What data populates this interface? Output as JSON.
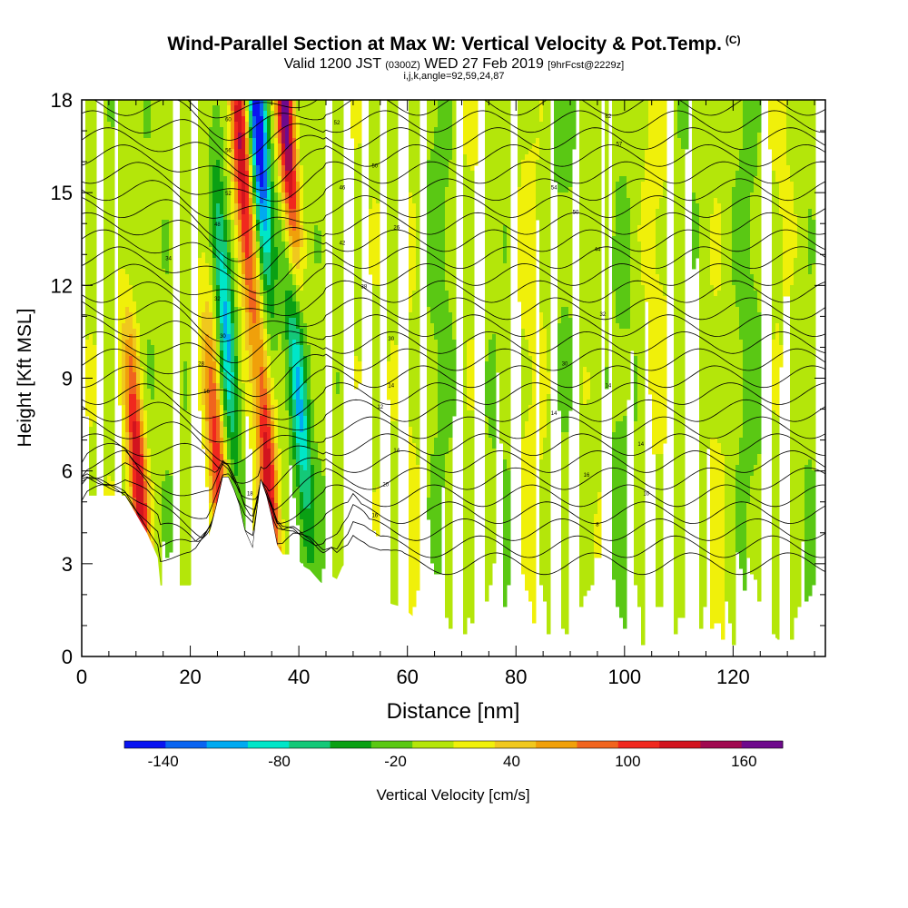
{
  "title": {
    "main": "Wind-Parallel Section at Max W: Vertical Velocity & Pot.Temp.",
    "main_mark": "(C)",
    "valid_prefix": "Valid 1200 JST",
    "valid_zulu": "(0300Z)",
    "valid_date": "WED 27 Feb 2019",
    "forecast": "[9hrFcst@2229z]",
    "indices": "i,j,k,angle=92,59,24,87"
  },
  "chart_data": {
    "type": "heatmap",
    "xlabel": "Distance [nm]",
    "ylabel": "Height [Kft MSL]",
    "xlim": [
      0,
      137
    ],
    "ylim": [
      0,
      18
    ],
    "x_ticks": [
      0,
      20,
      40,
      60,
      80,
      100,
      120
    ],
    "x_tick_labels": [
      "0",
      "20",
      "40",
      "60",
      "80",
      "100",
      "120"
    ],
    "y_ticks": [
      0,
      3,
      6,
      9,
      12,
      15,
      18
    ],
    "y_tick_labels": [
      "0",
      "3",
      "6",
      "9",
      "12",
      "15",
      "18"
    ],
    "colorbar": {
      "label": "Vertical Velocity [cm/s]",
      "min": -160,
      "max": 180,
      "step": 20,
      "tick_values": [
        -140,
        -80,
        -20,
        40,
        100,
        160
      ],
      "tick_labels": [
        "-140",
        "-80",
        "-20",
        "40",
        "100",
        "160"
      ],
      "colors": [
        "#0a14f0",
        "#0a64f0",
        "#00aaf0",
        "#00e6c8",
        "#14c878",
        "#0aa014",
        "#5ac814",
        "#b4e60a",
        "#f0f00a",
        "#f0c81e",
        "#f0a00a",
        "#f0641e",
        "#f0281e",
        "#d2141e",
        "#a00a50",
        "#6e0a8c"
      ]
    },
    "updrafts": [
      {
        "x": 10.5,
        "peak_height": 5.5,
        "max_velocity": 130
      },
      {
        "x": 34.5,
        "peak_height": 5.5,
        "max_velocity": 120
      },
      {
        "x": 37.5,
        "peak_height": 17.5,
        "max_velocity": 170
      },
      {
        "x": 29.5,
        "peak_height": 16.0,
        "max_velocity": 130
      },
      {
        "x": 25.0,
        "peak_height": 6.0,
        "max_velocity": 100
      }
    ],
    "downdrafts": [
      {
        "x": 32.5,
        "peak_height": 17.0,
        "min_velocity": -150
      },
      {
        "x": 26.5,
        "peak_height": 11.0,
        "min_velocity": -100
      },
      {
        "x": 40.0,
        "peak_height": 8.5,
        "min_velocity": -90
      }
    ],
    "terrain": {
      "x": [
        0,
        1,
        8,
        10,
        11,
        12,
        14,
        14.5,
        20,
        21,
        22,
        23,
        24,
        25,
        26,
        27,
        28,
        29,
        30,
        31,
        31.5,
        32,
        33,
        34,
        35,
        36,
        37,
        38,
        39,
        40,
        41,
        42,
        43,
        44,
        45,
        46,
        47,
        48,
        49,
        50,
        51,
        52,
        53,
        55,
        57,
        59,
        61,
        63,
        65,
        70,
        72,
        75,
        80,
        90,
        100,
        110,
        115,
        118,
        122,
        123,
        124,
        125,
        126,
        127,
        128,
        129,
        130,
        131,
        137
      ],
      "height": [
        4.9,
        5.2,
        5.2,
        4.6,
        4.3,
        4.0,
        3.2,
        2.3,
        2.3,
        2.5,
        3.0,
        3.6,
        4.3,
        5.0,
        5.8,
        5.8,
        5.4,
        4.9,
        4.1,
        3.7,
        3.5,
        4.3,
        5.7,
        5.2,
        4.5,
        3.6,
        3.3,
        3.3,
        3.3,
        3.1,
        2.9,
        2.8,
        2.6,
        2.4,
        2.3,
        2.6,
        2.5,
        2.9,
        3.1,
        3.6,
        3.3,
        3.0,
        2.6,
        2.0,
        1.7,
        1.6,
        1.3,
        1.0,
        0.7,
        0.7,
        0.35,
        0.35,
        0.35,
        0.35,
        0.35,
        0.35,
        0.35,
        0.35,
        0.35,
        0.6,
        0.95,
        0.95,
        0.35,
        0.6,
        0.6,
        0.35,
        0.35,
        0.35,
        0.35
      ]
    },
    "theta_contours": {
      "interval_c": 2,
      "labels": [
        {
          "x": 27,
          "y": 17.4,
          "text": "60"
        },
        {
          "x": 47,
          "y": 17.3,
          "text": "52"
        },
        {
          "x": 97,
          "y": 17.5,
          "text": "62"
        },
        {
          "x": 99,
          "y": 16.6,
          "text": "57"
        },
        {
          "x": 27,
          "y": 16.4,
          "text": "56"
        },
        {
          "x": 54,
          "y": 15.9,
          "text": "50"
        },
        {
          "x": 87,
          "y": 15.2,
          "text": "54"
        },
        {
          "x": 27,
          "y": 15.0,
          "text": "52"
        },
        {
          "x": 48,
          "y": 15.2,
          "text": "46"
        },
        {
          "x": 91,
          "y": 14.4,
          "text": "50"
        },
        {
          "x": 25,
          "y": 14.0,
          "text": "48"
        },
        {
          "x": 58,
          "y": 13.9,
          "text": "26"
        },
        {
          "x": 95,
          "y": 13.2,
          "text": "44"
        },
        {
          "x": 48,
          "y": 13.4,
          "text": "42"
        },
        {
          "x": 16,
          "y": 12.9,
          "text": "34"
        },
        {
          "x": 52,
          "y": 12.0,
          "text": "38"
        },
        {
          "x": 25,
          "y": 11.6,
          "text": "32"
        },
        {
          "x": 96,
          "y": 11.1,
          "text": "32"
        },
        {
          "x": 26,
          "y": 10.4,
          "text": "30"
        },
        {
          "x": 57,
          "y": 10.3,
          "text": "30"
        },
        {
          "x": 89,
          "y": 9.5,
          "text": "30"
        },
        {
          "x": 22,
          "y": 9.5,
          "text": "28"
        },
        {
          "x": 57,
          "y": 8.8,
          "text": "14"
        },
        {
          "x": 97,
          "y": 8.8,
          "text": "14"
        },
        {
          "x": 23,
          "y": 8.6,
          "text": "16"
        },
        {
          "x": 55,
          "y": 8.1,
          "text": "12"
        },
        {
          "x": 87,
          "y": 7.9,
          "text": "14"
        },
        {
          "x": 103,
          "y": 6.9,
          "text": "14"
        },
        {
          "x": 58,
          "y": 6.7,
          "text": "14"
        },
        {
          "x": 93,
          "y": 5.9,
          "text": "16"
        },
        {
          "x": 56,
          "y": 5.6,
          "text": "20"
        },
        {
          "x": 31,
          "y": 5.3,
          "text": "18"
        },
        {
          "x": 104,
          "y": 5.3,
          "text": "10"
        },
        {
          "x": 54,
          "y": 4.6,
          "text": "16"
        },
        {
          "x": 95,
          "y": 4.3,
          "text": "8"
        }
      ]
    }
  }
}
